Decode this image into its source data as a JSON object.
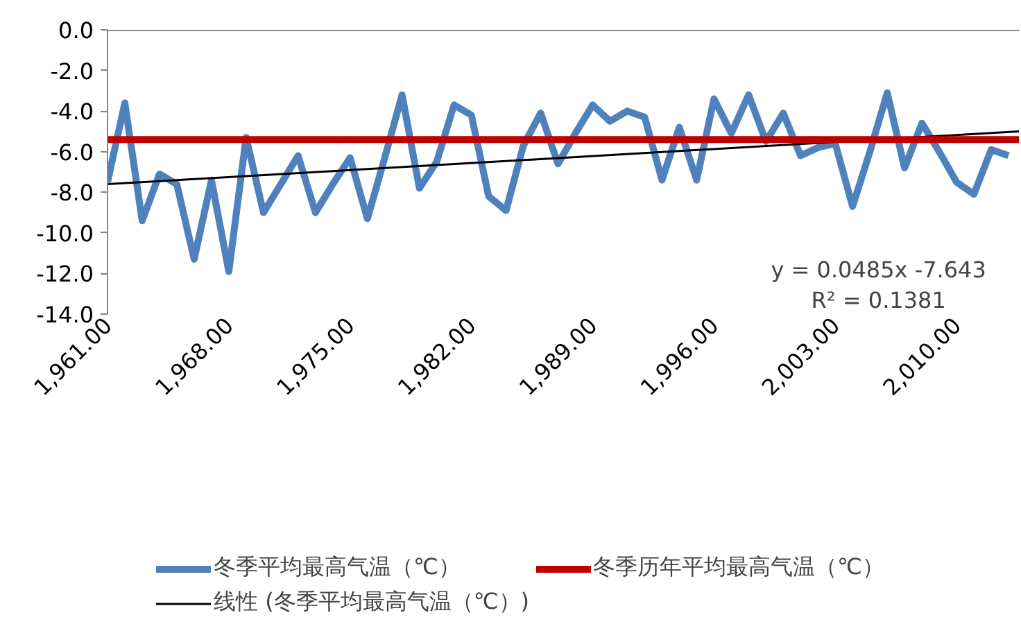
{
  "chart_data": {
    "type": "line",
    "x": [
      1961,
      1962,
      1963,
      1964,
      1965,
      1966,
      1967,
      1968,
      1969,
      1970,
      1971,
      1972,
      1973,
      1974,
      1975,
      1976,
      1977,
      1978,
      1979,
      1980,
      1981,
      1982,
      1983,
      1984,
      1985,
      1986,
      1987,
      1988,
      1989,
      1990,
      1991,
      1992,
      1993,
      1994,
      1995,
      1996,
      1997,
      1998,
      1999,
      2000,
      2001,
      2002,
      2003,
      2004,
      2005,
      2006,
      2007,
      2008,
      2009,
      2010,
      2011,
      2012,
      2013
    ],
    "series": [
      {
        "name": "冬季平均最高气温（℃）",
        "color": "#4f81bd",
        "values": [
          -7.5,
          -3.6,
          -9.4,
          -7.1,
          -7.6,
          -11.3,
          -7.4,
          -11.9,
          -5.3,
          -9.0,
          -7.6,
          -6.2,
          -9.0,
          -7.6,
          -6.3,
          -9.3,
          -6.3,
          -3.2,
          -7.8,
          -6.5,
          -3.7,
          -4.2,
          -8.2,
          -8.9,
          -5.7,
          -4.1,
          -6.6,
          -5.1,
          -3.7,
          -4.5,
          -4.0,
          -4.3,
          -7.4,
          -4.8,
          -7.4,
          -3.4,
          -5.1,
          -3.2,
          -5.5,
          -4.1,
          -6.2,
          -5.8,
          -5.6,
          -8.7,
          -6.0,
          -3.1,
          -6.8,
          -4.6,
          -6.0,
          -7.5,
          -8.1,
          -5.9,
          -6.2
        ]
      },
      {
        "name": "线性 (冬季平均最高气温（℃）)",
        "color": "#000000",
        "x": [
          1961,
          2013.6
        ],
        "values": [
          -7.6,
          -5.0
        ]
      }
    ],
    "ref_lines": [
      {
        "axis": "y",
        "value": -5.4,
        "label": "冬季历年平均最高气温（℃）",
        "color": "#c00000"
      }
    ],
    "xlim": [
      1961,
      2013.6
    ],
    "ylim": [
      -14,
      0
    ],
    "xticks": [
      {
        "value": 1961,
        "label": "1,961.00"
      },
      {
        "value": 1968,
        "label": "1,968.00"
      },
      {
        "value": 1975,
        "label": "1,975.00"
      },
      {
        "value": 1982,
        "label": "1,982.00"
      },
      {
        "value": 1989,
        "label": "1,989.00"
      },
      {
        "value": 1996,
        "label": "1,996.00"
      },
      {
        "value": 2003,
        "label": "2,003.00"
      },
      {
        "value": 2010,
        "label": "2,010.00"
      }
    ],
    "yticks": [
      {
        "value": 0,
        "label": "0.0"
      },
      {
        "value": -2,
        "label": "-2.0"
      },
      {
        "value": -4,
        "label": "-4.0"
      },
      {
        "value": -6,
        "label": "-6.0"
      },
      {
        "value": -8,
        "label": "-8.0"
      },
      {
        "value": -10,
        "label": "-10.0"
      },
      {
        "value": -12,
        "label": "-12.0"
      },
      {
        "value": -14,
        "label": "-14.0"
      }
    ],
    "annotations": [
      "y = 0.0485x -7.643",
      "R² = 0.1381"
    ],
    "legend": "bottom",
    "grid": false
  }
}
